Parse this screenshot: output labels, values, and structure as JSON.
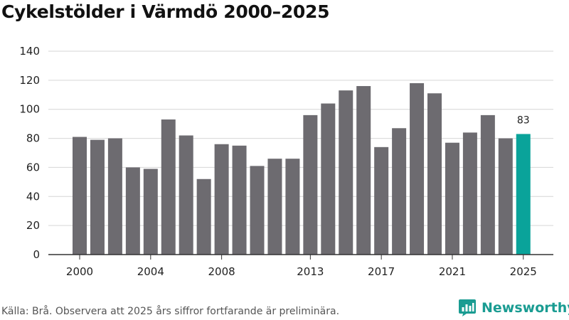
{
  "chart_data": {
    "type": "bar",
    "title": "Cykelstölder i Värmdö 2000–2025",
    "xlabel": "",
    "ylabel": "",
    "ylim": [
      0,
      140
    ],
    "yticks": [
      0,
      20,
      40,
      60,
      80,
      100,
      120,
      140
    ],
    "grid": true,
    "categories": [
      "2000",
      "2001",
      "2002",
      "2003",
      "2004",
      "2005",
      "2006",
      "2007",
      "2008",
      "2009",
      "2010",
      "2011",
      "2012",
      "2013",
      "2014",
      "2015",
      "2016",
      "2017",
      "2018",
      "2019",
      "2020",
      "2021",
      "2022",
      "2023",
      "2024",
      "2025"
    ],
    "values": [
      81,
      79,
      80,
      60,
      59,
      93,
      82,
      52,
      76,
      75,
      61,
      66,
      66,
      96,
      104,
      113,
      116,
      74,
      87,
      118,
      111,
      77,
      84,
      96,
      80,
      83
    ],
    "xtick_labels": [
      "2000",
      "2004",
      "2008",
      "2013",
      "2017",
      "2021",
      "2025"
    ],
    "highlight": {
      "category": "2025",
      "label": "83"
    },
    "colors": {
      "bar": "#6d6b70",
      "highlight": "#0aa39a",
      "grid": "#d6d6d6",
      "axis": "#333333"
    }
  },
  "footer": {
    "source": "Källa: Brå. Observera att 2025 års siffror fortfarande är preliminära.",
    "brand": "Newsworthy",
    "brand_icon": "newsworthy-logo-icon"
  }
}
